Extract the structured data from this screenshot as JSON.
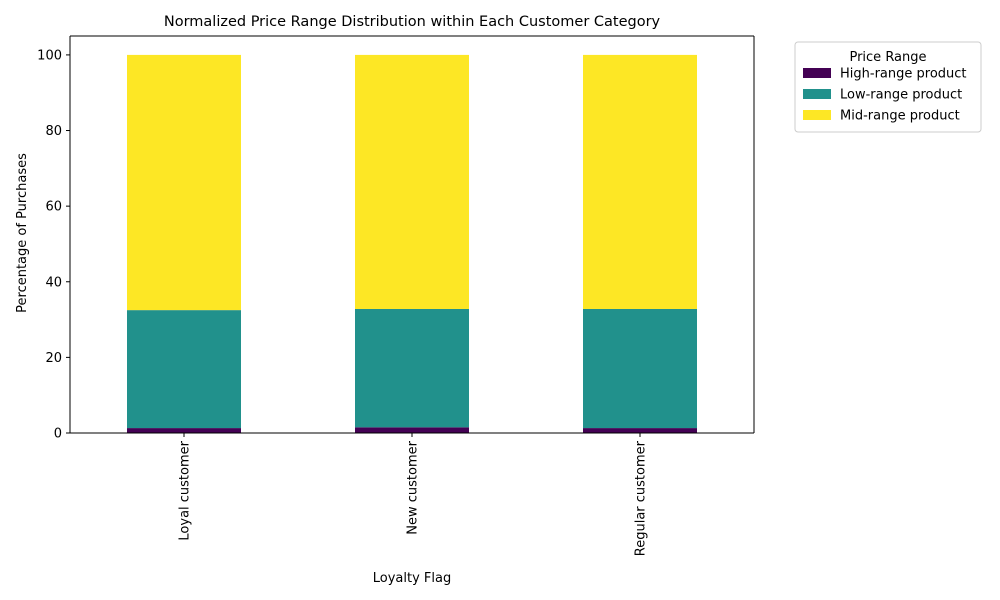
{
  "chart_data": {
    "type": "bar",
    "stacked": true,
    "title": "Normalized Price Range Distribution within Each Customer Category",
    "xlabel": "Loyalty Flag",
    "ylabel": "Percentage of Purchases",
    "ylim": [
      0,
      105
    ],
    "yticks": [
      "0",
      "20",
      "40",
      "60",
      "80",
      "100"
    ],
    "categories": [
      "Loyal customer",
      "New customer",
      "Regular customer"
    ],
    "legend": {
      "title": "Price Range",
      "placement": "outside-top-right"
    },
    "grid": false,
    "series": [
      {
        "name": "High-range product",
        "color": "#440154",
        "values": [
          1.3,
          1.5,
          1.3
        ]
      },
      {
        "name": "Low-range product",
        "color": "#21918c",
        "values": [
          31.2,
          31.3,
          31.5
        ]
      },
      {
        "name": "Mid-range product",
        "color": "#fde725",
        "values": [
          67.5,
          67.2,
          67.2
        ]
      }
    ]
  }
}
